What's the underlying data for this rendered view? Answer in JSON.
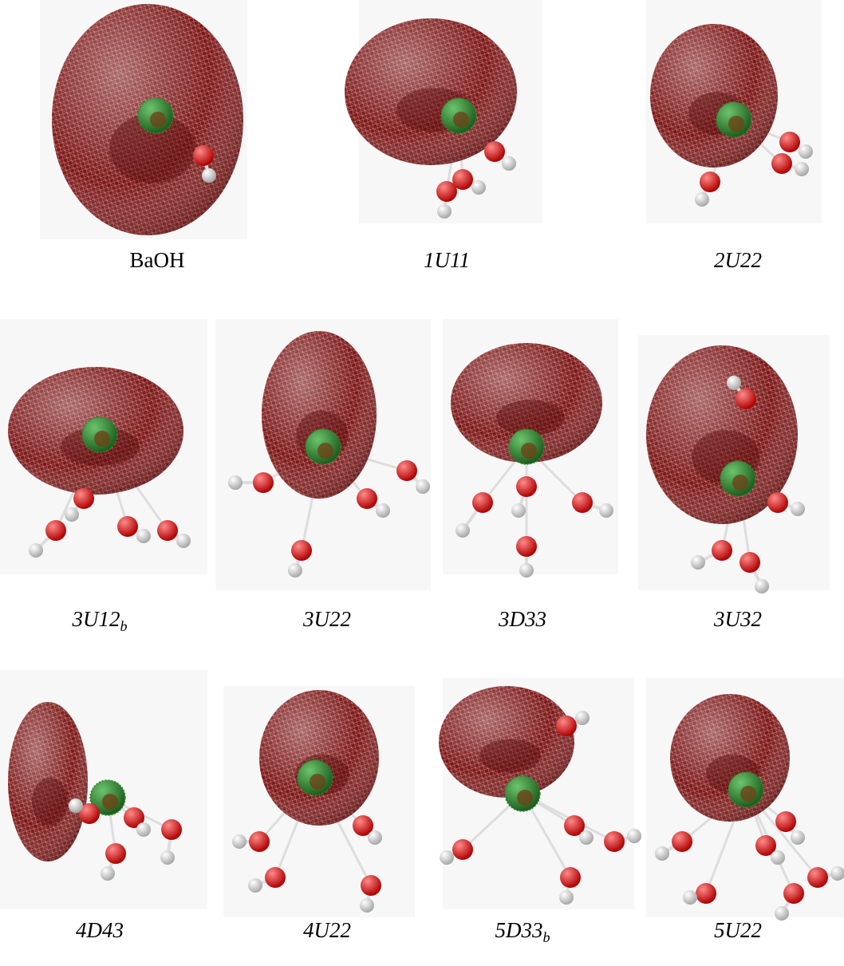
{
  "figure": {
    "panels": [
      {
        "label": "BaOH"
      },
      {
        "label": "1U11"
      },
      {
        "label": "2U22"
      },
      {
        "label": "3U12",
        "subscript": "b"
      },
      {
        "label": "3U22"
      },
      {
        "label": "3D33"
      },
      {
        "label": "3U32"
      },
      {
        "label": "4D43"
      },
      {
        "label": "4U22"
      },
      {
        "label": "5D33",
        "subscript": "b"
      },
      {
        "label": "5U22"
      }
    ]
  }
}
